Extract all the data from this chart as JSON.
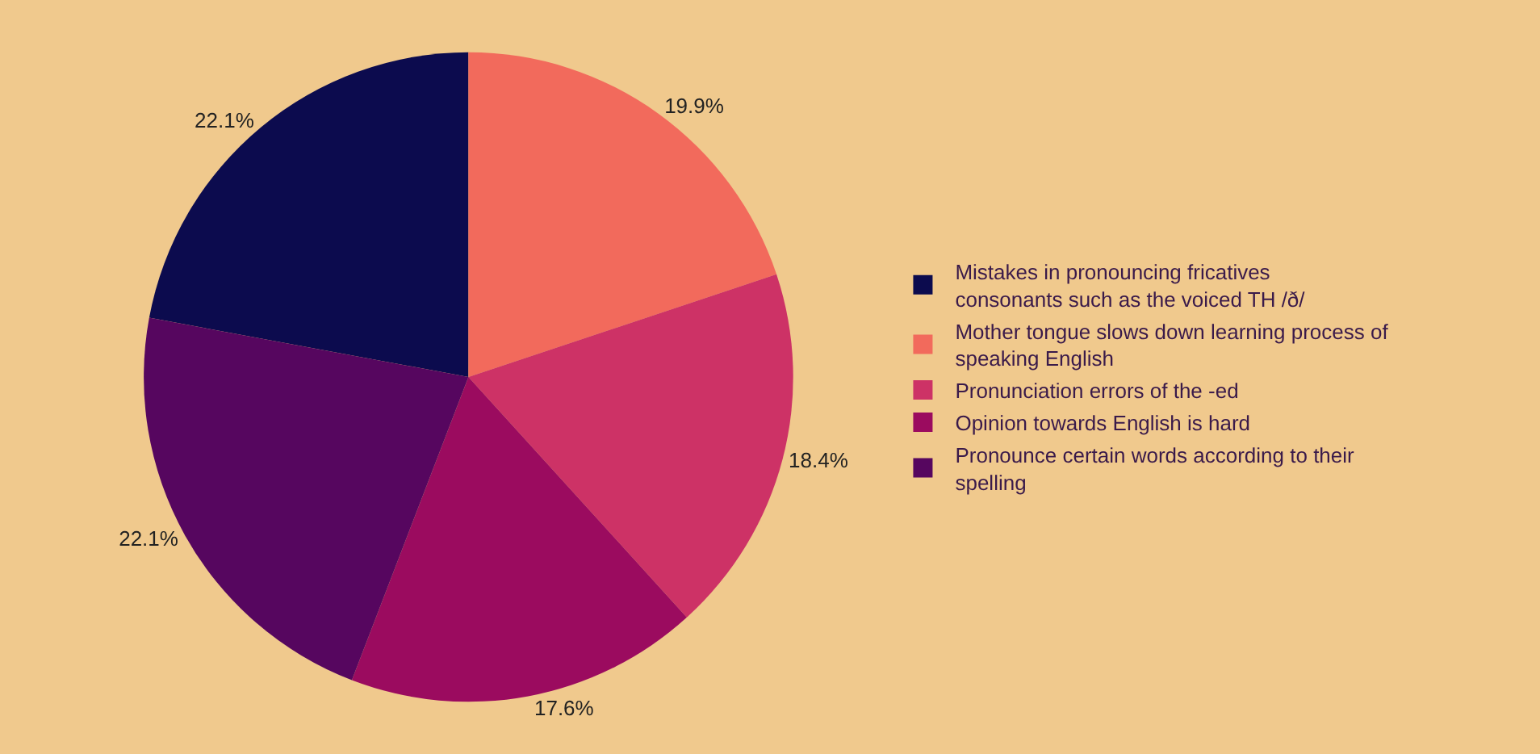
{
  "chart_data": {
    "type": "pie",
    "categories": [
      "Mistakes in pronouncing fricatives consonants such as the voiced TH /ð/",
      "Mother tongue slows down learning process of speaking English",
      "Pronunciation errors of the -ed",
      "Opinion towards English is hard",
      "Pronounce certain words according to their spelling"
    ],
    "values": [
      22.1,
      19.9,
      18.4,
      17.6,
      22.1
    ],
    "value_labels": [
      "22.1%",
      "19.9%",
      "18.4%",
      "17.6%",
      "22.1%"
    ],
    "colors": [
      "#0c0b4e",
      "#f26a5c",
      "#cd3266",
      "#9b0b5f",
      "#56065f"
    ],
    "legend": "right"
  }
}
